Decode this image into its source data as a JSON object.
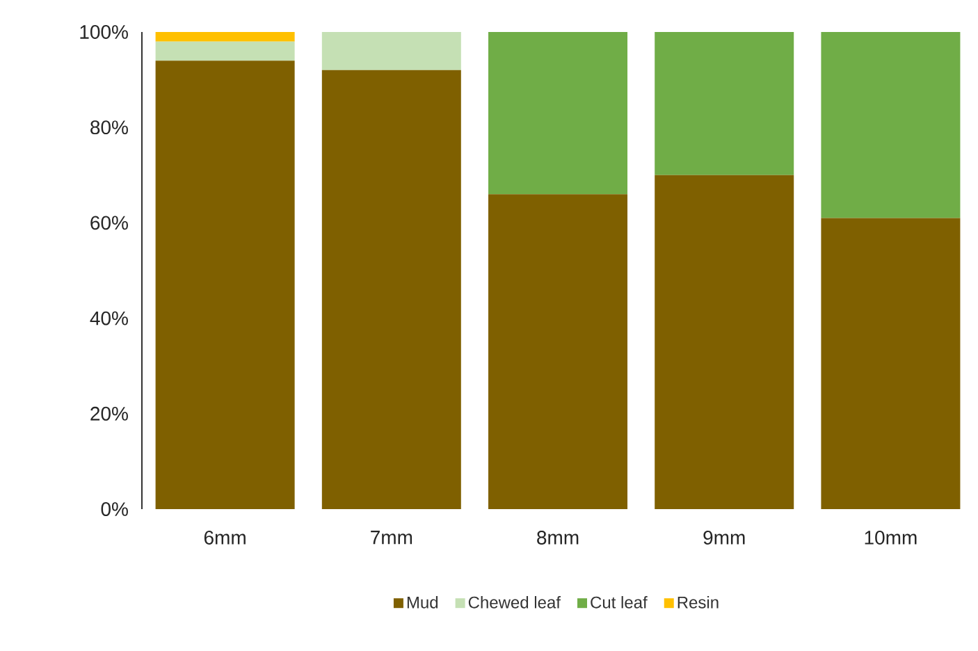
{
  "chart_data": {
    "type": "bar",
    "stacked": true,
    "categories": [
      "6mm",
      "7mm",
      "8mm",
      "9mm",
      "10mm"
    ],
    "series": [
      {
        "name": "Mud",
        "color": "#7f6000",
        "values": [
          94,
          92,
          66,
          70,
          61
        ]
      },
      {
        "name": "Chewed leaf",
        "color": "#c5e0b4",
        "values": [
          4,
          8,
          0,
          0,
          0
        ]
      },
      {
        "name": "Cut leaf",
        "color": "#70ad47",
        "values": [
          0,
          0,
          34,
          30,
          39
        ]
      },
      {
        "name": "Resin",
        "color": "#ffc000",
        "values": [
          2,
          0,
          0,
          0,
          0
        ]
      }
    ],
    "ylim": [
      0,
      100
    ],
    "yticks": [
      {
        "value": 0,
        "label": "0%"
      },
      {
        "value": 20,
        "label": "20%"
      },
      {
        "value": 40,
        "label": "40%"
      },
      {
        "value": 60,
        "label": "60%"
      },
      {
        "value": 80,
        "label": "80%"
      },
      {
        "value": 100,
        "label": "100%"
      }
    ],
    "grid": false,
    "legend": "bottom"
  }
}
